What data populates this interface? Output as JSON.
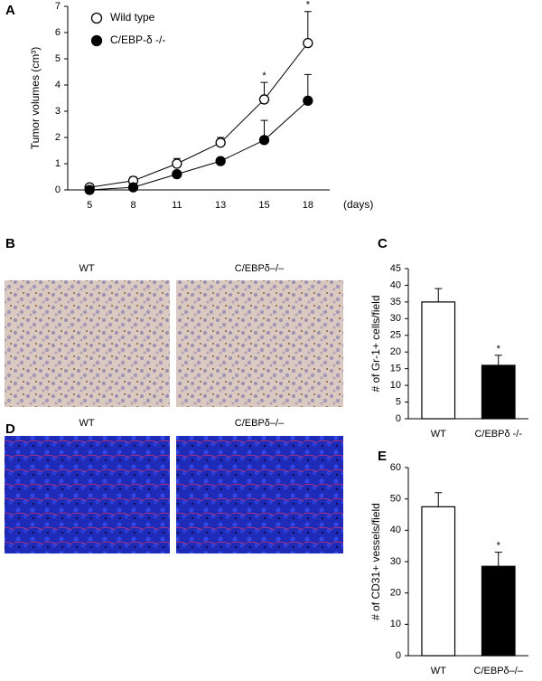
{
  "chart_data": [
    {
      "type": "line",
      "panel_label": "A",
      "ylabel": "Tumor volumes (cm³)",
      "xlabel": "(days)",
      "categories": [
        "5",
        "8",
        "11",
        "13",
        "15",
        "18"
      ],
      "ylim": [
        0,
        7
      ],
      "yticks": [
        0,
        1,
        2,
        3,
        4,
        5,
        6,
        7
      ],
      "series": [
        {
          "name": "Wild type",
          "color": "#ffffff",
          "values": [
            0.1,
            0.35,
            1.0,
            1.8,
            3.45,
            5.6
          ],
          "errors": [
            0.1,
            0.15,
            0.2,
            0.2,
            0.65,
            1.2
          ]
        },
        {
          "name": "C/EBP-δ -/-",
          "color": "#000000",
          "values": [
            0.0,
            0.1,
            0.6,
            1.1,
            1.9,
            3.4
          ],
          "errors": [
            0.02,
            0.05,
            0.1,
            0.1,
            0.75,
            1.0
          ]
        }
      ],
      "significance": [
        null,
        null,
        null,
        null,
        "*",
        "*"
      ]
    },
    {
      "type": "bar",
      "panel_label": "C",
      "ylabel": "# of Gr-1+ cells/field",
      "categories": [
        "WT",
        "C/EBPδ -/-"
      ],
      "values": [
        35,
        16
      ],
      "errors": [
        4,
        3
      ],
      "colors": [
        "#ffffff",
        "#000000"
      ],
      "significance": [
        null,
        "*"
      ],
      "ylim": [
        0,
        45
      ],
      "yticks": [
        0,
        5,
        10,
        15,
        20,
        25,
        30,
        35,
        40,
        45
      ]
    },
    {
      "type": "bar",
      "panel_label": "E",
      "ylabel": "# of CD31+ vessels/field",
      "categories": [
        "WT",
        "C/EBPδ–/–"
      ],
      "values": [
        47.5,
        28.5
      ],
      "errors": [
        4.5,
        4.5
      ],
      "colors": [
        "#ffffff",
        "#000000"
      ],
      "significance": [
        null,
        "*"
      ],
      "ylim": [
        0,
        60
      ],
      "yticks": [
        0,
        10,
        20,
        30,
        40,
        50,
        60
      ]
    }
  ],
  "images": [
    {
      "panel_label": "B",
      "captions": [
        "WT",
        "C/EBPδ–/–"
      ]
    },
    {
      "panel_label": "D",
      "captions": [
        "WT",
        "C/EBPδ–/–"
      ]
    }
  ]
}
